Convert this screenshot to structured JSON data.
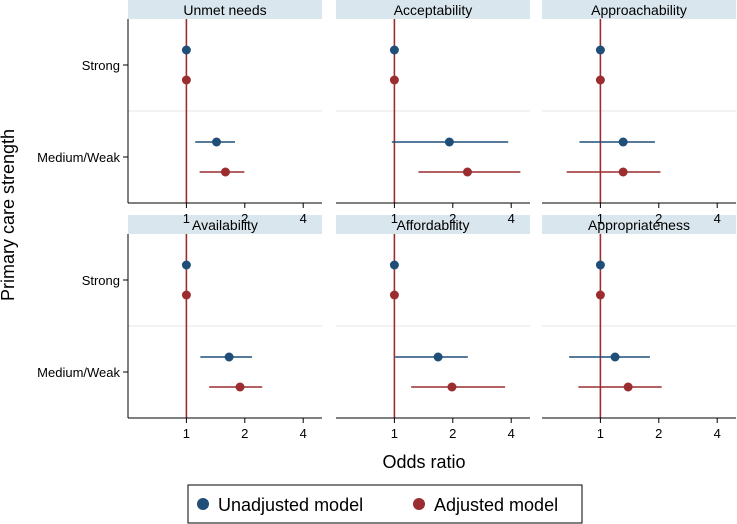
{
  "chart_data": {
    "type": "forest",
    "xlabel": "Odds ratio",
    "ylabel": "Primary care strength",
    "x_scale": "log2",
    "xlim": [
      0.5,
      5.0
    ],
    "x_ticks": [
      1,
      2,
      4
    ],
    "x_tick_labels": [
      "1",
      "2",
      "4"
    ],
    "reference_line": 1,
    "categories": [
      "Strong",
      "Medium/Weak"
    ],
    "legend": [
      {
        "name": "Unadjusted model",
        "color": "#1f4e79"
      },
      {
        "name": "Adjusted model",
        "color": "#9b2d30"
      }
    ],
    "panels": [
      {
        "title": "Unmet needs",
        "rows": [
          {
            "category": "Strong",
            "model": "Unadjusted model",
            "or": 1.0,
            "lo": 1.0,
            "hi": 1.0
          },
          {
            "category": "Strong",
            "model": "Adjusted model",
            "or": 1.0,
            "lo": 1.0,
            "hi": 1.0
          },
          {
            "category": "Medium/Weak",
            "model": "Unadjusted model",
            "or": 1.43,
            "lo": 1.11,
            "hi": 1.78
          },
          {
            "category": "Medium/Weak",
            "model": "Adjusted model",
            "or": 1.59,
            "lo": 1.17,
            "hi": 1.99
          }
        ]
      },
      {
        "title": "Acceptability",
        "rows": [
          {
            "category": "Strong",
            "model": "Unadjusted model",
            "or": 1.0,
            "lo": 1.0,
            "hi": 1.0
          },
          {
            "category": "Strong",
            "model": "Adjusted model",
            "or": 1.0,
            "lo": 1.0,
            "hi": 1.0
          },
          {
            "category": "Medium/Weak",
            "model": "Unadjusted model",
            "or": 1.92,
            "lo": 0.97,
            "hi": 3.86
          },
          {
            "category": "Medium/Weak",
            "model": "Adjusted model",
            "or": 2.38,
            "lo": 1.33,
            "hi": 4.46
          }
        ]
      },
      {
        "title": "Approachability",
        "rows": [
          {
            "category": "Strong",
            "model": "Unadjusted model",
            "or": 1.0,
            "lo": 1.0,
            "hi": 1.0
          },
          {
            "category": "Strong",
            "model": "Adjusted model",
            "or": 1.0,
            "lo": 1.0,
            "hi": 1.0
          },
          {
            "category": "Medium/Weak",
            "model": "Unadjusted model",
            "or": 1.31,
            "lo": 0.78,
            "hi": 1.91
          },
          {
            "category": "Medium/Weak",
            "model": "Adjusted model",
            "or": 1.31,
            "lo": 0.67,
            "hi": 2.04
          }
        ]
      },
      {
        "title": "Availability",
        "rows": [
          {
            "category": "Strong",
            "model": "Unadjusted model",
            "or": 1.0,
            "lo": 1.0,
            "hi": 1.0
          },
          {
            "category": "Strong",
            "model": "Adjusted model",
            "or": 1.0,
            "lo": 1.0,
            "hi": 1.0
          },
          {
            "category": "Medium/Weak",
            "model": "Unadjusted model",
            "or": 1.66,
            "lo": 1.18,
            "hi": 2.18
          },
          {
            "category": "Medium/Weak",
            "model": "Adjusted model",
            "or": 1.89,
            "lo": 1.31,
            "hi": 2.46
          }
        ]
      },
      {
        "title": "Affordability",
        "rows": [
          {
            "category": "Strong",
            "model": "Unadjusted model",
            "or": 1.0,
            "lo": 1.0,
            "hi": 1.0
          },
          {
            "category": "Strong",
            "model": "Adjusted model",
            "or": 1.0,
            "lo": 1.0,
            "hi": 1.0
          },
          {
            "category": "Medium/Weak",
            "model": "Unadjusted model",
            "or": 1.68,
            "lo": 1.01,
            "hi": 2.39
          },
          {
            "category": "Medium/Weak",
            "model": "Adjusted model",
            "or": 1.98,
            "lo": 1.22,
            "hi": 3.72
          }
        ]
      },
      {
        "title": "Appropriateness",
        "rows": [
          {
            "category": "Strong",
            "model": "Unadjusted model",
            "or": 1.0,
            "lo": 1.0,
            "hi": 1.0
          },
          {
            "category": "Strong",
            "model": "Adjusted model",
            "or": 1.0,
            "lo": 1.0,
            "hi": 1.0
          },
          {
            "category": "Medium/Weak",
            "model": "Unadjusted model",
            "or": 1.19,
            "lo": 0.69,
            "hi": 1.8
          },
          {
            "category": "Medium/Weak",
            "model": "Adjusted model",
            "or": 1.39,
            "lo": 0.77,
            "hi": 2.07
          }
        ]
      }
    ]
  }
}
